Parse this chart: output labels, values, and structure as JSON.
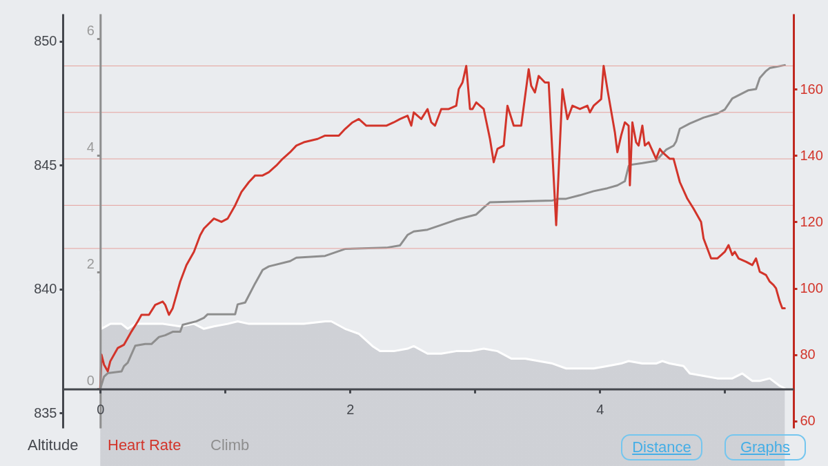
{
  "chart_data": {
    "type": "line",
    "legend": "bottom left",
    "xlim": [
      -0.3,
      5.55
    ],
    "xticks": [
      0,
      {
        "value": 1,
        "label": null
      },
      2,
      {
        "value": 3,
        "label": null
      },
      4,
      {
        "value": 5,
        "label": null
      }
    ],
    "ylim": [
      834.4,
      851.1
    ],
    "yticks": [
      835,
      840,
      845,
      850
    ],
    "y2lim": [
      57.9,
      182.7
    ],
    "y2ticks": [
      60,
      80,
      100,
      120,
      140,
      160
    ],
    "y3lim": [
      -0.67,
      6.43
    ],
    "y3ticks": [
      0,
      2,
      4,
      6
    ],
    "ref_lines": [
      {
        "axis": "y2",
        "value": 167,
        "color": "#e6a19c"
      },
      {
        "axis": "y2",
        "value": 153,
        "color": "#e6a19c"
      },
      {
        "axis": "y2",
        "value": 139,
        "color": "#e6a19c"
      },
      {
        "axis": "y2",
        "value": 125,
        "color": "#e6a19c"
      },
      {
        "axis": "y2",
        "value": 112,
        "color": "#e6a19c"
      }
    ],
    "series": [
      {
        "name": "Altitude",
        "type": "area",
        "axis": "y",
        "color": "#ffffff",
        "x": [
          0,
          0.01,
          0.08,
          0.17,
          0.22,
          0.28,
          0.41,
          0.5,
          0.64,
          0.75,
          0.83,
          0.91,
          1.02,
          1.1,
          1.19,
          1.41,
          1.63,
          1.8,
          1.85,
          1.96,
          2.07,
          2.18,
          2.24,
          2.35,
          2.46,
          2.51,
          2.62,
          2.73,
          2.85,
          2.96,
          3.07,
          3.18,
          3.29,
          3.4,
          3.51,
          3.62,
          3.73,
          3.84,
          3.95,
          4.06,
          4.17,
          4.23,
          4.34,
          4.45,
          4.5,
          4.56,
          4.67,
          4.72,
          4.83,
          4.94,
          5.06,
          5.14,
          5.22,
          5.28,
          5.36,
          5.44,
          5.48
        ],
        "values": [
          839.9,
          838.4,
          838.6,
          838.6,
          838.4,
          838.6,
          838.6,
          838.6,
          838.5,
          838.6,
          838.4,
          838.5,
          838.6,
          838.7,
          838.6,
          838.6,
          838.6,
          838.7,
          838.7,
          838.4,
          838.2,
          837.7,
          837.5,
          837.5,
          837.6,
          837.7,
          837.4,
          837.4,
          837.5,
          837.5,
          837.6,
          837.5,
          837.2,
          837.2,
          837.1,
          837.0,
          836.8,
          836.8,
          836.8,
          836.9,
          837.0,
          837.1,
          837.0,
          837.0,
          837.1,
          837.0,
          836.9,
          836.6,
          836.5,
          836.4,
          836.4,
          836.6,
          836.3,
          836.3,
          836.4,
          836.1,
          836.0
        ]
      },
      {
        "name": "Heart Rate",
        "axis": "y2",
        "color": "#d2342a",
        "x": [
          0,
          0.01,
          0.03,
          0.06,
          0.08,
          0.14,
          0.19,
          0.25,
          0.3,
          0.33,
          0.39,
          0.44,
          0.5,
          0.52,
          0.55,
          0.58,
          0.64,
          0.69,
          0.75,
          0.8,
          0.83,
          0.91,
          0.97,
          1.02,
          1.08,
          1.13,
          1.19,
          1.24,
          1.3,
          1.35,
          1.41,
          1.46,
          1.52,
          1.57,
          1.63,
          1.74,
          1.8,
          1.91,
          1.96,
          2.02,
          2.07,
          2.13,
          2.29,
          2.35,
          2.4,
          2.46,
          2.49,
          2.51,
          2.57,
          2.62,
          2.65,
          2.68,
          2.73,
          2.79,
          2.85,
          2.87,
          2.9,
          2.93,
          2.96,
          2.98,
          3.01,
          3.07,
          3.12,
          3.15,
          3.18,
          3.23,
          3.26,
          3.31,
          3.37,
          3.43,
          3.45,
          3.48,
          3.51,
          3.56,
          3.59,
          3.65,
          3.7,
          3.74,
          3.78,
          3.84,
          3.9,
          3.92,
          3.95,
          4.01,
          4.03,
          4.06,
          4.12,
          4.14,
          4.17,
          4.2,
          4.23,
          4.24,
          4.26,
          4.29,
          4.31,
          4.34,
          4.36,
          4.39,
          4.45,
          4.48,
          4.5,
          4.56,
          4.59,
          4.64,
          4.7,
          4.75,
          4.81,
          4.83,
          4.89,
          4.94,
          4.97,
          5.0,
          5.03,
          5.06,
          5.08,
          5.11,
          5.17,
          5.22,
          5.25,
          5.28,
          5.33,
          5.36,
          5.39,
          5.41,
          5.44,
          5.46,
          5.48
        ],
        "values": [
          70,
          80,
          77,
          75,
          78,
          82,
          83,
          87,
          90,
          92,
          92,
          95,
          96,
          95,
          92,
          94,
          102,
          107,
          111,
          116,
          118,
          121,
          120,
          121,
          125,
          129,
          132,
          134,
          134,
          135,
          137,
          139,
          141,
          143,
          144,
          145,
          146,
          146,
          148,
          150,
          151,
          149,
          149,
          150,
          151,
          152,
          149,
          153,
          151,
          154,
          150,
          149,
          154,
          154,
          155,
          160,
          162,
          167,
          154,
          154,
          156,
          154,
          145,
          138,
          142,
          143,
          155,
          149,
          149,
          166,
          161,
          159,
          164,
          162,
          162,
          119,
          160,
          151,
          155,
          154,
          155,
          153,
          155,
          157,
          167,
          160,
          147,
          141,
          146,
          150,
          149,
          131,
          150,
          144,
          143,
          149,
          143,
          144,
          139,
          142,
          141,
          139,
          139,
          132,
          127,
          124,
          120,
          115,
          109,
          109,
          110,
          111,
          113,
          110,
          111,
          109,
          108,
          107,
          109,
          105,
          104,
          102,
          101,
          100,
          96,
          94,
          94
        ]
      },
      {
        "name": "Climb",
        "axis": "y3",
        "color": "#8e8e8e",
        "x": [
          0,
          0.03,
          0.06,
          0.17,
          0.19,
          0.22,
          0.28,
          0.36,
          0.41,
          0.47,
          0.52,
          0.58,
          0.64,
          0.66,
          0.77,
          0.83,
          0.86,
          1.08,
          1.1,
          1.16,
          1.24,
          1.3,
          1.35,
          1.52,
          1.57,
          1.8,
          1.96,
          2.29,
          2.4,
          2.46,
          2.51,
          2.62,
          2.73,
          2.85,
          3.01,
          3.07,
          3.12,
          3.62,
          3.67,
          3.73,
          3.84,
          3.95,
          4.06,
          4.14,
          4.2,
          4.23,
          4.24,
          4.34,
          4.45,
          4.5,
          4.53,
          4.59,
          4.61,
          4.64,
          4.72,
          4.83,
          4.94,
          5.0,
          5.06,
          5.19,
          5.25,
          5.28,
          5.33,
          5.36,
          5.48
        ],
        "values": [
          0,
          0.21,
          0.27,
          0.3,
          0.39,
          0.45,
          0.74,
          0.77,
          0.77,
          0.89,
          0.92,
          0.98,
          0.98,
          1.1,
          1.16,
          1.22,
          1.28,
          1.28,
          1.45,
          1.48,
          1.81,
          2.04,
          2.1,
          2.19,
          2.25,
          2.28,
          2.4,
          2.42,
          2.46,
          2.64,
          2.7,
          2.73,
          2.81,
          2.9,
          2.99,
          3.11,
          3.2,
          3.23,
          3.26,
          3.26,
          3.32,
          3.39,
          3.44,
          3.49,
          3.56,
          3.82,
          3.84,
          3.87,
          3.91,
          4.03,
          4.1,
          4.17,
          4.24,
          4.46,
          4.55,
          4.65,
          4.72,
          4.79,
          4.98,
          5.12,
          5.14,
          5.33,
          5.45,
          5.5,
          5.55
        ]
      }
    ],
    "annotations": [
      "Distance",
      "Graphs"
    ]
  }
}
